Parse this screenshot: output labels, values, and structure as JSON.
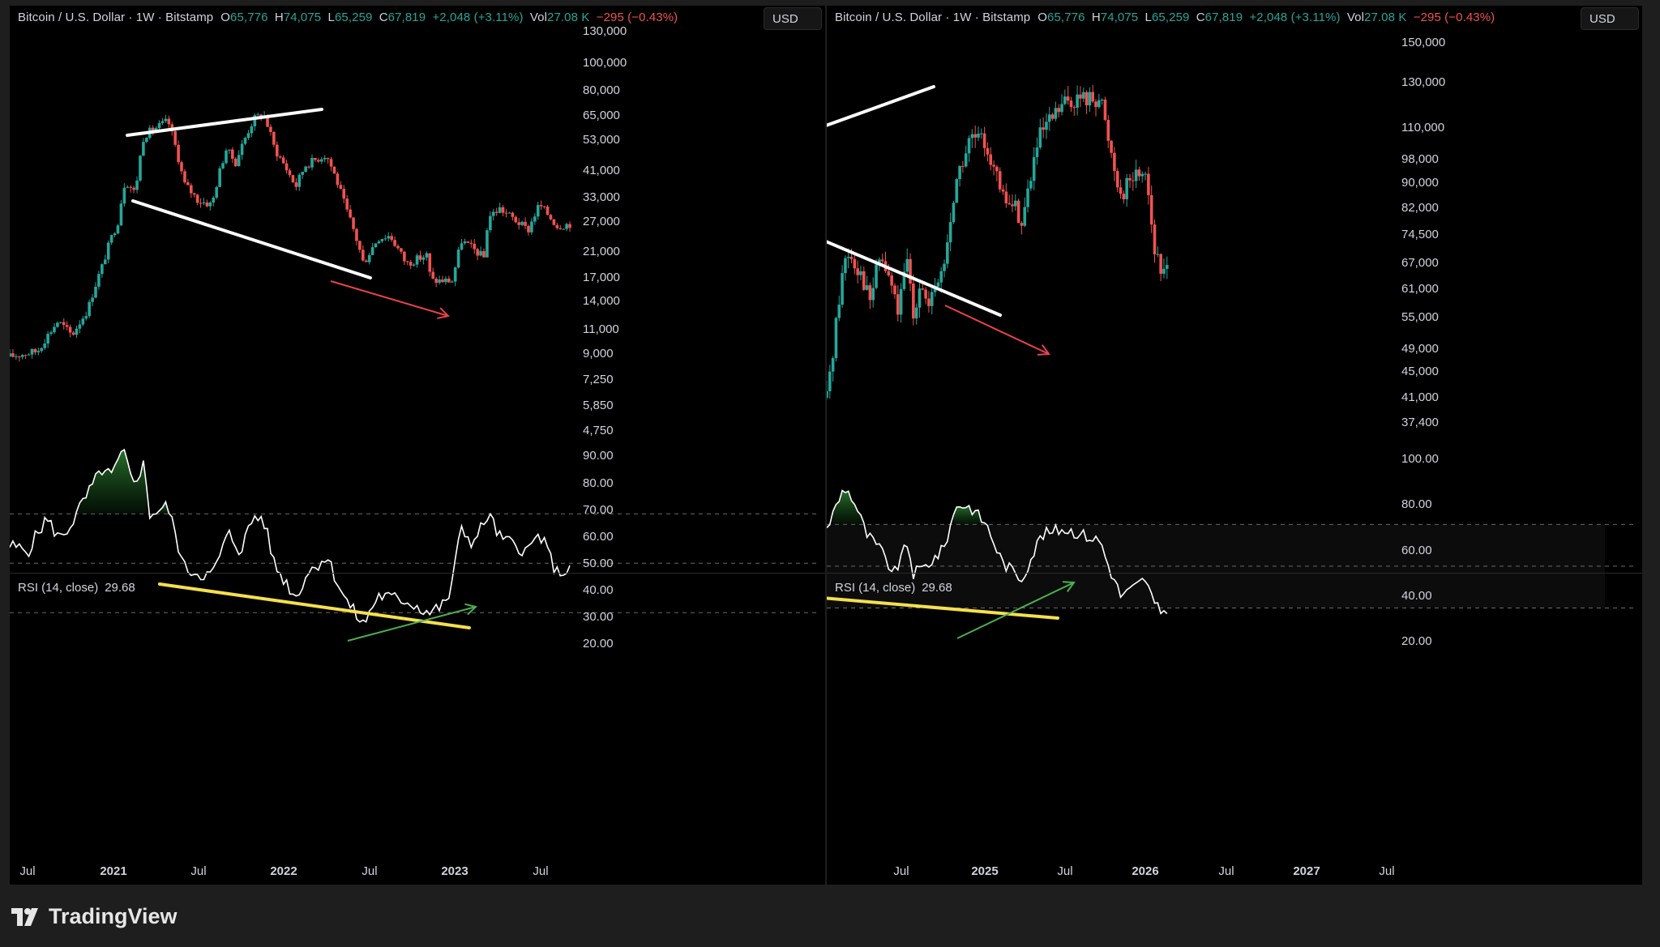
{
  "footer": {
    "brand": "TradingView",
    "logo_icon": "tradingview-logo-icon"
  },
  "colors": {
    "up": "#26a69a",
    "down": "#ef5350",
    "rsi_line": "#ffffff",
    "trend_white": "#ffffff",
    "trend_yellow": "#f4e04d",
    "arrow_red": "#e8424d",
    "arrow_green": "#4caf50"
  },
  "panels": [
    {
      "id": "left",
      "legend": {
        "title": "Bitcoin / U.S. Dollar · 1W · Bitstamp",
        "o_label": "O",
        "o": "65,776",
        "h_label": "H",
        "h": "74,075",
        "l_label": "L",
        "l": "65,259",
        "c_label": "C",
        "c": "67,819",
        "change": "+2,048 (+3.11%)",
        "vol_label": "Vol",
        "vol": "27.08 K",
        "vol_change": "−295 (−0.43%)"
      },
      "currency": "USD",
      "rsi_legend": {
        "label": "RSI (14, close)",
        "value": "29.68"
      },
      "price_axis": [
        "130,000",
        "100,000",
        "80,000",
        "65,000",
        "53,000",
        "41,000",
        "33,000",
        "27,000",
        "21,000",
        "17,000",
        "14,000",
        "11,000",
        "9,000",
        "7,250",
        "5,850",
        "4,750"
      ],
      "rsi_axis": [
        "90.00",
        "80.00",
        "70.00",
        "60.00",
        "50.00",
        "40.00",
        "30.00",
        "20.00"
      ],
      "time_axis": [
        {
          "label": "Jul",
          "year": false
        },
        {
          "label": "2021",
          "year": true
        },
        {
          "label": "Jul",
          "year": false
        },
        {
          "label": "2022",
          "year": true
        },
        {
          "label": "Jul",
          "year": false
        },
        {
          "label": "2023",
          "year": true
        },
        {
          "label": "Jul",
          "year": false
        }
      ]
    },
    {
      "id": "right",
      "legend": {
        "title": "Bitcoin / U.S. Dollar · 1W · Bitstamp",
        "o_label": "O",
        "o": "65,776",
        "h_label": "H",
        "h": "74,075",
        "l_label": "L",
        "l": "65,259",
        "c_label": "C",
        "c": "67,819",
        "change": "+2,048 (+3.11%)",
        "vol_label": "Vol",
        "vol": "27.08 K",
        "vol_change": "−295 (−0.43%)"
      },
      "currency": "USD",
      "rsi_legend": {
        "label": "RSI (14, close)",
        "value": "29.68"
      },
      "price_axis": [
        "150,000",
        "130,000",
        "110,000",
        "98,000",
        "90,000",
        "82,000",
        "74,500",
        "67,000",
        "61,000",
        "55,000",
        "49,000",
        "45,000",
        "41,000",
        "37,400"
      ],
      "rsi_axis": [
        "100.00",
        "80.00",
        "60.00",
        "40.00",
        "20.00"
      ],
      "time_axis": [
        {
          "label": "Jul",
          "year": false
        },
        {
          "label": "2025",
          "year": true
        },
        {
          "label": "Jul",
          "year": false
        },
        {
          "label": "2026",
          "year": true
        },
        {
          "label": "Jul",
          "year": false
        },
        {
          "label": "2027",
          "year": true
        },
        {
          "label": "Jul",
          "year": false
        }
      ]
    }
  ],
  "chart_data": [
    {
      "type": "candlestick",
      "panel": "left",
      "title": "Bitcoin / U.S. Dollar · 1W · Bitstamp",
      "scale": "log",
      "ylim": [
        4750,
        130000
      ],
      "x_range": [
        "2020-05-01",
        "2023-10-01"
      ],
      "close_path": [
        [
          "2020-05-01",
          8800
        ],
        [
          "2020-07-01",
          9200
        ],
        [
          "2020-08-15",
          11800
        ],
        [
          "2020-09-15",
          10500
        ],
        [
          "2020-10-20",
          13000
        ],
        [
          "2020-11-20",
          18500
        ],
        [
          "2020-12-25",
          27000
        ],
        [
          "2021-01-10",
          38000
        ],
        [
          "2021-02-01",
          34000
        ],
        [
          "2021-02-20",
          55000
        ],
        [
          "2021-03-15",
          58000
        ],
        [
          "2021-04-14",
          62000
        ],
        [
          "2021-05-19",
          37000
        ],
        [
          "2021-06-20",
          32000
        ],
        [
          "2021-07-20",
          31000
        ],
        [
          "2021-08-20",
          49000
        ],
        [
          "2021-09-10",
          44000
        ],
        [
          "2021-10-20",
          63000
        ],
        [
          "2021-11-10",
          66000
        ],
        [
          "2021-12-05",
          49000
        ],
        [
          "2022-01-20",
          36000
        ],
        [
          "2022-02-10",
          43000
        ],
        [
          "2022-03-28",
          47000
        ],
        [
          "2022-05-10",
          30000
        ],
        [
          "2022-06-18",
          19000
        ],
        [
          "2022-07-20",
          23500
        ],
        [
          "2022-08-15",
          24000
        ],
        [
          "2022-09-20",
          19000
        ],
        [
          "2022-11-08",
          20500
        ],
        [
          "2022-11-12",
          16500
        ],
        [
          "2022-12-31",
          16500
        ],
        [
          "2023-01-20",
          23000
        ],
        [
          "2023-03-10",
          20000
        ],
        [
          "2023-03-20",
          28000
        ],
        [
          "2023-04-14",
          30000
        ],
        [
          "2023-06-15",
          25000
        ],
        [
          "2023-07-10",
          31000
        ],
        [
          "2023-08-18",
          26000
        ],
        [
          "2023-09-20",
          26500
        ]
      ]
    },
    {
      "type": "line",
      "panel": "left",
      "title": "RSI (14, close)",
      "ylim": [
        15,
        97
      ],
      "hlines": [
        70,
        50,
        30
      ],
      "values_path": [
        [
          "2020-05-01",
          57
        ],
        [
          "2020-06-10",
          55
        ],
        [
          "2020-07-20",
          68
        ],
        [
          "2020-08-20",
          60
        ],
        [
          "2020-09-10",
          65
        ],
        [
          "2020-10-20",
          78
        ],
        [
          "2020-11-20",
          88
        ],
        [
          "2020-12-10",
          85
        ],
        [
          "2021-01-08",
          96
        ],
        [
          "2021-01-25",
          82
        ],
        [
          "2021-02-20",
          90
        ],
        [
          "2021-03-05",
          70
        ],
        [
          "2021-04-14",
          73
        ],
        [
          "2021-05-20",
          48
        ],
        [
          "2021-06-20",
          46
        ],
        [
          "2021-07-20",
          45
        ],
        [
          "2021-08-25",
          62
        ],
        [
          "2021-09-20",
          55
        ],
        [
          "2021-10-20",
          69
        ],
        [
          "2021-11-10",
          68
        ],
        [
          "2021-12-05",
          49
        ],
        [
          "2022-01-22",
          36
        ],
        [
          "2022-02-10",
          45
        ],
        [
          "2022-03-28",
          53
        ],
        [
          "2022-05-10",
          35
        ],
        [
          "2022-06-18",
          25
        ],
        [
          "2022-07-20",
          37
        ],
        [
          "2022-08-15",
          36
        ],
        [
          "2022-09-20",
          35
        ],
        [
          "2022-11-10",
          30
        ],
        [
          "2022-12-20",
          34
        ],
        [
          "2023-01-20",
          64
        ],
        [
          "2023-02-15",
          58
        ],
        [
          "2023-03-20",
          70
        ],
        [
          "2023-04-15",
          60
        ],
        [
          "2023-06-15",
          55
        ],
        [
          "2023-07-10",
          62
        ],
        [
          "2023-08-18",
          46
        ],
        [
          "2023-09-20",
          48
        ]
      ]
    },
    {
      "type": "candlestick",
      "panel": "right",
      "title": "Bitcoin / U.S. Dollar · 1W · Bitstamp",
      "scale": "log",
      "ylim": [
        37400,
        150000
      ],
      "x_range": [
        "2024-01-25",
        "2027-08-01"
      ],
      "close_path": [
        [
          "2024-01-25",
          41000
        ],
        [
          "2024-02-10",
          50000
        ],
        [
          "2024-03-05",
          68000
        ],
        [
          "2024-03-15",
          70000
        ],
        [
          "2024-04-15",
          64000
        ],
        [
          "2024-05-01",
          58000
        ],
        [
          "2024-05-25",
          69000
        ],
        [
          "2024-06-25",
          60000
        ],
        [
          "2024-07-05",
          56000
        ],
        [
          "2024-07-28",
          69000
        ],
        [
          "2024-08-05",
          54000
        ],
        [
          "2024-08-25",
          64000
        ],
        [
          "2024-09-10",
          56000
        ],
        [
          "2024-10-20",
          68000
        ],
        [
          "2024-11-12",
          90000
        ],
        [
          "2024-12-17",
          106000
        ],
        [
          "2025-01-20",
          104000
        ],
        [
          "2025-02-25",
          85000
        ],
        [
          "2025-03-30",
          82000
        ],
        [
          "2025-04-10",
          77000
        ],
        [
          "2025-05-20",
          106000
        ],
        [
          "2025-07-14",
          120000
        ],
        [
          "2025-08-14",
          122000
        ],
        [
          "2025-10-06",
          123000
        ],
        [
          "2025-10-20",
          108000
        ],
        [
          "2025-11-20",
          86000
        ],
        [
          "2025-12-10",
          91000
        ],
        [
          "2026-01-15",
          95000
        ],
        [
          "2026-02-05",
          70000
        ],
        [
          "2026-02-20",
          64000
        ],
        [
          "2026-03-05",
          67819
        ]
      ]
    },
    {
      "type": "line",
      "panel": "right",
      "title": "RSI (14, close)",
      "ylim": [
        10,
        107
      ],
      "hlines": [
        70,
        50,
        30
      ],
      "values_path": [
        [
          "2024-01-25",
          68
        ],
        [
          "2024-03-05",
          88
        ],
        [
          "2024-03-25",
          82
        ],
        [
          "2024-04-25",
          65
        ],
        [
          "2024-05-25",
          58
        ],
        [
          "2024-06-25",
          46
        ],
        [
          "2024-07-28",
          62
        ],
        [
          "2024-08-05",
          46
        ],
        [
          "2024-09-05",
          50
        ],
        [
          "2024-10-15",
          58
        ],
        [
          "2024-11-15",
          80
        ],
        [
          "2024-12-17",
          78
        ],
        [
          "2025-01-20",
          70
        ],
        [
          "2025-02-25",
          52
        ],
        [
          "2025-04-10",
          44
        ],
        [
          "2025-05-25",
          65
        ],
        [
          "2025-07-14",
          68
        ],
        [
          "2025-08-14",
          66
        ],
        [
          "2025-10-06",
          62
        ],
        [
          "2025-10-20",
          52
        ],
        [
          "2025-11-20",
          36
        ],
        [
          "2025-12-10",
          38
        ],
        [
          "2026-01-15",
          44
        ],
        [
          "2026-02-05",
          31
        ],
        [
          "2026-02-20",
          28
        ],
        [
          "2026-03-05",
          29.68
        ]
      ]
    }
  ]
}
